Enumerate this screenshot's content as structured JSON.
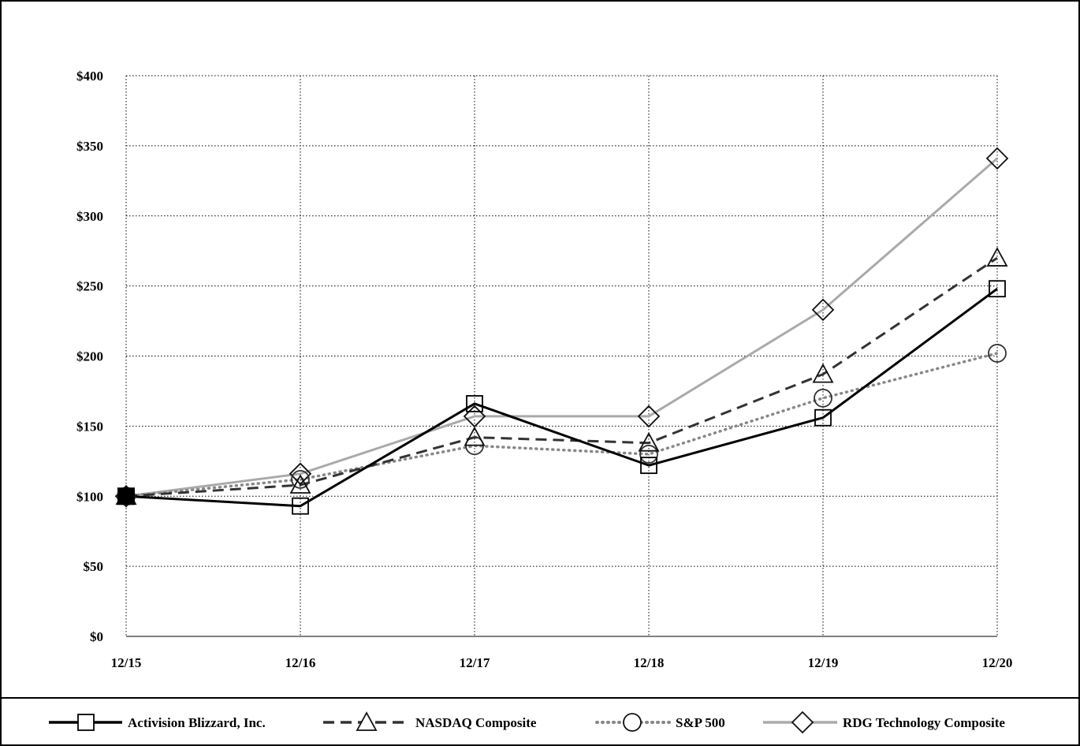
{
  "chart_data": {
    "type": "line",
    "title": "",
    "xlabel": "",
    "ylabel": "",
    "categories": [
      "12/15",
      "12/16",
      "12/17",
      "12/18",
      "12/19",
      "12/20"
    ],
    "ylim": [
      0,
      400
    ],
    "yticks": [
      0,
      50,
      100,
      150,
      200,
      250,
      300,
      350,
      400
    ],
    "ytick_labels": [
      "$0",
      "$50",
      "$100",
      "$150",
      "$200",
      "$250",
      "$300",
      "$350",
      "$400"
    ],
    "grid": true,
    "legend_position": "bottom",
    "series": [
      {
        "name": "Activision Blizzard, Inc.",
        "values": [
          100,
          93,
          166,
          122,
          156,
          248
        ],
        "color": "#000000",
        "dash": "solid",
        "marker": "square"
      },
      {
        "name": "NASDAQ Composite",
        "values": [
          100,
          108,
          142,
          138,
          187,
          270
        ],
        "color": "#333333",
        "dash": "dashed",
        "marker": "triangle"
      },
      {
        "name": "S&P 500",
        "values": [
          100,
          112,
          136,
          130,
          170,
          202
        ],
        "color": "#888888",
        "dash": "dotted",
        "marker": "circle"
      },
      {
        "name": "RDG Technology Composite",
        "values": [
          100,
          116,
          157,
          157,
          233,
          341
        ],
        "color": "#aaaaaa",
        "dash": "solid",
        "marker": "diamond"
      }
    ]
  }
}
